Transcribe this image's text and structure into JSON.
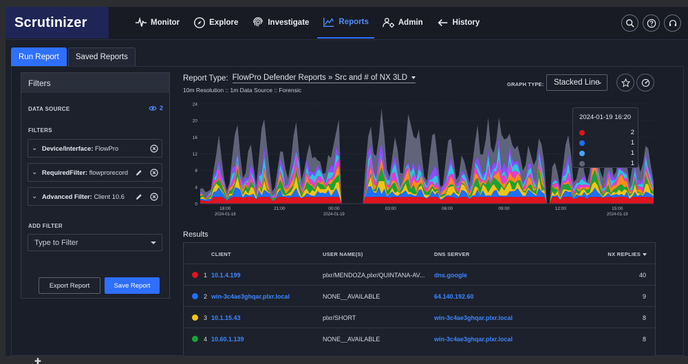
{
  "app": {
    "title": "Scrutinizer"
  },
  "nav": [
    {
      "label": "Monitor",
      "icon": "pulse-icon"
    },
    {
      "label": "Explore",
      "icon": "compass-icon"
    },
    {
      "label": "Investigate",
      "icon": "fingerprint-icon"
    },
    {
      "label": "Reports",
      "icon": "area-chart-icon",
      "active": true
    },
    {
      "label": "Admin",
      "icon": "users-gear-icon"
    },
    {
      "label": "History",
      "icon": "arrow-left-icon"
    }
  ],
  "top_icons": [
    "search-icon",
    "help-icon",
    "headset-icon"
  ],
  "tabs": {
    "run_report": "Run Report",
    "saved_reports": "Saved Reports"
  },
  "filters": {
    "title": "Filters",
    "data_source_label": "DATA SOURCE",
    "data_source_count": "2",
    "filters_label": "FILTERS",
    "items": [
      {
        "name": "Device/Interface:",
        "value": "FlowPro"
      },
      {
        "name": "RequiredFilter:",
        "value": "flowprorecord"
      },
      {
        "name": "Advanced Filter:",
        "value": "Client 10.6"
      }
    ],
    "add_filter_label": "ADD FILTER",
    "add_filter_placeholder": "Type to Filter",
    "export_label": "Export Report",
    "save_label": "Save Report"
  },
  "report": {
    "type_label": "Report Type:",
    "type_value": "FlowPro Defender Reports » Src and # of NX 3LD",
    "subtitle": "10m Resolution :: 1m Data Source :: Forensic",
    "graph_type_label": "GRAPH TYPE:",
    "graph_type_value": "Stacked Line"
  },
  "chart_data": {
    "type": "area",
    "stacked": true,
    "yticks": [
      0,
      4,
      8,
      12,
      16,
      20,
      24
    ],
    "ylim": [
      0,
      24
    ],
    "xlim": [
      0,
      100
    ],
    "xticks": [
      {
        "label": "18:00",
        "date": "2024-01-18",
        "x": 5.5
      },
      {
        "label": "21:00",
        "date": "",
        "x": 17.5
      },
      {
        "label": "00:00",
        "date": "2024-01-19",
        "x": 29.5
      },
      {
        "label": "03:00",
        "date": "",
        "x": 42
      },
      {
        "label": "06:00",
        "date": "",
        "x": 54.5
      },
      {
        "label": "09:00",
        "date": "",
        "x": 67
      },
      {
        "label": "12:00",
        "date": "",
        "x": 79.5
      },
      {
        "label": "15:00",
        "date": "2024-01-19",
        "x": 92
      }
    ],
    "series": [
      {
        "name": "10.1.4.199",
        "color": "#e0141e"
      },
      {
        "name": "win-3c4ae3ghqar.plxr.local",
        "color": "#1f6fff"
      },
      {
        "name": "10.1.15.43",
        "color": "#f2c418"
      },
      {
        "name": "10.60.1.139",
        "color": "#17a534"
      },
      {
        "name": "",
        "color": "#ff8a1c"
      },
      {
        "name": "",
        "color": "#e83ad6"
      },
      {
        "name": "",
        "color": "#2ec4e0"
      },
      {
        "name": "",
        "color": "#8a4dff"
      },
      {
        "name": "",
        "color": "#5f6478"
      }
    ]
  },
  "tooltip": {
    "title": "2024-01-19 16:20",
    "rows": [
      {
        "color": "#e0141e",
        "value": "2"
      },
      {
        "color": "#1f6fff",
        "value": "1"
      },
      {
        "color": "#4aa3ff",
        "value": "1"
      },
      {
        "color": "#5f6478",
        "value": "1"
      }
    ]
  },
  "results": {
    "label": "Results",
    "columns": {
      "client": "CLIENT",
      "user": "USER NAME(S)",
      "dns": "DNS SERVER",
      "nx": "NX REPLIES"
    },
    "rows": [
      {
        "rank": "1",
        "color": "#e0141e",
        "client": "10.1.4.199",
        "user": "plxr/MENDOZA,plxr/QUINTANA-AV...",
        "dns": "dns.google",
        "dns_link": true,
        "nx": "40"
      },
      {
        "rank": "2",
        "color": "#1f6fff",
        "client": "win-3c4ae3ghqar.plxr.local",
        "user": "NONE__AVAILABLE",
        "dns": "64.140.192.60",
        "dns_link": true,
        "nx": "9"
      },
      {
        "rank": "3",
        "color": "#f2c418",
        "client": "10.1.15.43",
        "user": "plxr/SHORT",
        "dns": "win-3c4ae3ghqar.plxr.local",
        "dns_link": true,
        "nx": "8"
      },
      {
        "rank": "4",
        "color": "#17a534",
        "client": "10.60.1.139",
        "user": "NONE__AVAILABLE",
        "dns": "win-3c4ae3ghqar.plxr.local",
        "dns_link": true,
        "nx": "8"
      }
    ]
  }
}
